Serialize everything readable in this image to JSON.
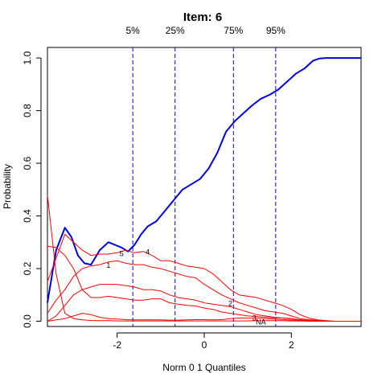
{
  "chart_data": {
    "type": "line",
    "title": "Item:  6",
    "xlabel": "Norm 0 1 Quantiles",
    "ylabel": "Probability",
    "xlim": [
      -3.6,
      3.6
    ],
    "ylim": [
      -0.02,
      1.04
    ],
    "xticks": [
      -2,
      0,
      2
    ],
    "yticks": [
      0.0,
      0.2,
      0.4,
      0.6,
      0.8,
      1.0
    ],
    "grid": false,
    "quantile_lines": [
      {
        "label": "5%",
        "x": -1.64
      },
      {
        "label": "25%",
        "x": -0.67
      },
      {
        "label": "75%",
        "x": 0.67
      },
      {
        "label": "95%",
        "x": 1.64
      }
    ],
    "colors": {
      "main": "#0000dd",
      "options": "#ff0000",
      "quantile": "#0000dd",
      "axis": "#000000"
    },
    "series": [
      {
        "label": "",
        "color": "#0000dd",
        "width": 2,
        "x": [
          -3.6,
          -3.4,
          -3.2,
          -3.05,
          -2.9,
          -2.75,
          -2.6,
          -2.4,
          -2.2,
          -2.05,
          -1.9,
          -1.75,
          -1.6,
          -1.45,
          -1.3,
          -1.1,
          -0.9,
          -0.7,
          -0.5,
          -0.3,
          -0.1,
          0.1,
          0.3,
          0.5,
          0.7,
          0.9,
          1.1,
          1.3,
          1.5,
          1.7,
          1.9,
          2.1,
          2.3,
          2.5,
          2.65,
          2.8,
          3.0,
          3.2,
          3.4,
          3.6
        ],
        "y": [
          0.07,
          0.27,
          0.355,
          0.32,
          0.25,
          0.22,
          0.215,
          0.27,
          0.3,
          0.29,
          0.28,
          0.265,
          0.29,
          0.33,
          0.36,
          0.38,
          0.42,
          0.46,
          0.5,
          0.52,
          0.54,
          0.58,
          0.64,
          0.72,
          0.76,
          0.79,
          0.82,
          0.845,
          0.86,
          0.88,
          0.91,
          0.94,
          0.96,
          0.99,
          0.998,
          1.0,
          1.0,
          1.0,
          1.0,
          1.0
        ]
      },
      {
        "label": "1",
        "label_x": -2.2,
        "label_y": 0.215,
        "color": "#ff0000",
        "width": 1,
        "x": [
          -3.6,
          -3.4,
          -3.2,
          -3.0,
          -2.8,
          -2.6,
          -2.4,
          -2.2,
          -2.0,
          -1.8,
          -1.6,
          -1.4,
          -1.2,
          -1.0,
          -0.8,
          -0.6,
          -0.4,
          -0.2,
          0.0,
          0.2,
          0.4,
          0.6,
          0.8,
          1.0,
          1.2,
          1.4,
          1.6,
          1.8,
          2.0,
          2.2,
          2.4,
          2.6,
          2.8,
          3.0,
          3.6
        ],
        "y": [
          0.03,
          0.08,
          0.12,
          0.17,
          0.2,
          0.21,
          0.215,
          0.225,
          0.23,
          0.22,
          0.215,
          0.215,
          0.205,
          0.2,
          0.19,
          0.18,
          0.17,
          0.165,
          0.14,
          0.12,
          0.1,
          0.085,
          0.07,
          0.06,
          0.05,
          0.04,
          0.035,
          0.03,
          0.02,
          0.01,
          0.006,
          0.003,
          0.001,
          0.0,
          0.0
        ]
      },
      {
        "label": "2",
        "label_x": 0.6,
        "label_y": 0.07,
        "color": "#ff0000",
        "width": 1,
        "x": [
          -3.6,
          -3.4,
          -3.2,
          -3.0,
          -2.8,
          -2.6,
          -2.4,
          -2.2,
          -2.0,
          -1.8,
          -1.6,
          -1.4,
          -1.2,
          -1.0,
          -0.8,
          -0.6,
          -0.4,
          -0.2,
          0.0,
          0.2,
          0.4,
          0.6,
          0.8,
          1.0,
          1.2,
          1.4,
          1.6,
          1.8,
          2.0,
          2.2,
          2.4,
          2.6,
          2.8,
          3.0,
          3.6
        ],
        "y": [
          0.0,
          0.02,
          0.06,
          0.1,
          0.12,
          0.13,
          0.14,
          0.14,
          0.14,
          0.135,
          0.13,
          0.12,
          0.12,
          0.115,
          0.1,
          0.09,
          0.085,
          0.08,
          0.07,
          0.065,
          0.06,
          0.055,
          0.045,
          0.035,
          0.025,
          0.02,
          0.015,
          0.012,
          0.008,
          0.005,
          0.003,
          0.002,
          0.001,
          0.0,
          0.0
        ]
      },
      {
        "label": "3",
        "label_x": 1.15,
        "label_y": 0.015,
        "color": "#ff0000",
        "width": 1,
        "x": [
          -3.6,
          -3.4,
          -3.2,
          -3.0,
          -2.8,
          -2.6,
          -2.4,
          -2.2,
          -2.0,
          -1.8,
          -1.6,
          -1.4,
          -1.2,
          -1.0,
          -0.8,
          -0.6,
          -0.4,
          -0.2,
          0.0,
          0.2,
          0.4,
          0.6,
          0.8,
          1.0,
          1.2,
          1.4,
          1.6,
          1.8,
          2.0,
          2.2,
          2.4,
          2.6,
          2.8,
          3.0,
          3.6
        ],
        "y": [
          0.0,
          0.005,
          0.01,
          0.02,
          0.03,
          0.025,
          0.015,
          0.01,
          0.008,
          0.006,
          0.005,
          0.005,
          0.005,
          0.005,
          0.004,
          0.004,
          0.005,
          0.006,
          0.006,
          0.005,
          0.006,
          0.01,
          0.012,
          0.012,
          0.012,
          0.01,
          0.008,
          0.006,
          0.004,
          0.003,
          0.002,
          0.001,
          0.0,
          0.0,
          0.0
        ]
      },
      {
        "label": "4",
        "label_x": -1.3,
        "label_y": 0.265,
        "color": "#ff0000",
        "width": 1,
        "x": [
          -3.6,
          -3.4,
          -3.2,
          -3.0,
          -2.8,
          -2.6,
          -2.4,
          -2.2,
          -2.0,
          -1.8,
          -1.6,
          -1.4,
          -1.2,
          -1.0,
          -0.8,
          -0.6,
          -0.4,
          -0.2,
          0.0,
          0.2,
          0.4,
          0.6,
          0.8,
          1.0,
          1.2,
          1.4,
          1.6,
          1.8,
          2.0,
          2.2,
          2.4,
          2.6,
          2.8,
          3.0,
          3.6
        ],
        "y": [
          0.15,
          0.24,
          0.33,
          0.3,
          0.27,
          0.25,
          0.255,
          0.255,
          0.26,
          0.27,
          0.26,
          0.265,
          0.25,
          0.23,
          0.23,
          0.22,
          0.21,
          0.205,
          0.2,
          0.18,
          0.15,
          0.12,
          0.1,
          0.095,
          0.09,
          0.08,
          0.07,
          0.06,
          0.045,
          0.025,
          0.012,
          0.005,
          0.002,
          0.0,
          0.0
        ]
      },
      {
        "label": "5",
        "label_x": -1.9,
        "label_y": 0.26,
        "color": "#ff0000",
        "width": 1,
        "x": [
          -3.6,
          -3.4,
          -3.2,
          -3.0,
          -2.8,
          -2.6,
          -2.4,
          -2.2,
          -2.0,
          -1.8,
          -1.6,
          -1.4,
          -1.2,
          -1.0,
          -0.8,
          -0.6,
          -0.4,
          -0.2,
          0.0,
          0.2,
          0.4,
          0.6,
          0.8,
          1.0,
          1.2,
          1.4,
          1.6,
          1.8,
          2.0,
          2.2,
          2.4,
          2.6,
          2.8,
          3.0,
          3.6
        ],
        "y": [
          0.285,
          0.28,
          0.25,
          0.2,
          0.12,
          0.09,
          0.09,
          0.095,
          0.09,
          0.085,
          0.08,
          0.08,
          0.085,
          0.085,
          0.07,
          0.065,
          0.06,
          0.058,
          0.05,
          0.045,
          0.035,
          0.03,
          0.025,
          0.02,
          0.018,
          0.015,
          0.013,
          0.012,
          0.01,
          0.006,
          0.003,
          0.001,
          0.0,
          0.0,
          0.0
        ]
      },
      {
        "label": "NA",
        "label_x": 1.3,
        "label_y": 0.0,
        "color": "#ff0000",
        "width": 1,
        "x": [
          -3.6,
          -3.4,
          -3.2,
          -3.0,
          -2.8,
          -2.6,
          -2.4,
          -2.2,
          -2.0,
          -1.8,
          -1.6,
          -1.4,
          -1.2,
          -1.0,
          -0.8,
          -0.6,
          -0.4,
          -0.2,
          0.0,
          0.2,
          0.4,
          0.6,
          0.8,
          1.0,
          1.2,
          1.4,
          1.6,
          1.8,
          2.0,
          2.2,
          2.4,
          2.6,
          2.8,
          3.0,
          3.6
        ],
        "y": [
          0.48,
          0.18,
          0.03,
          0.01,
          0.005,
          0.003,
          0.002,
          0.002,
          0.001,
          0.001,
          0.001,
          0.001,
          0.001,
          0.001,
          0.001,
          0.001,
          0.001,
          0.001,
          0.001,
          0.001,
          0.001,
          0.001,
          0.001,
          0.001,
          0.002,
          0.002,
          0.002,
          0.002,
          0.001,
          0.001,
          0.0,
          0.0,
          0.0,
          0.0,
          0.0
        ]
      }
    ]
  }
}
